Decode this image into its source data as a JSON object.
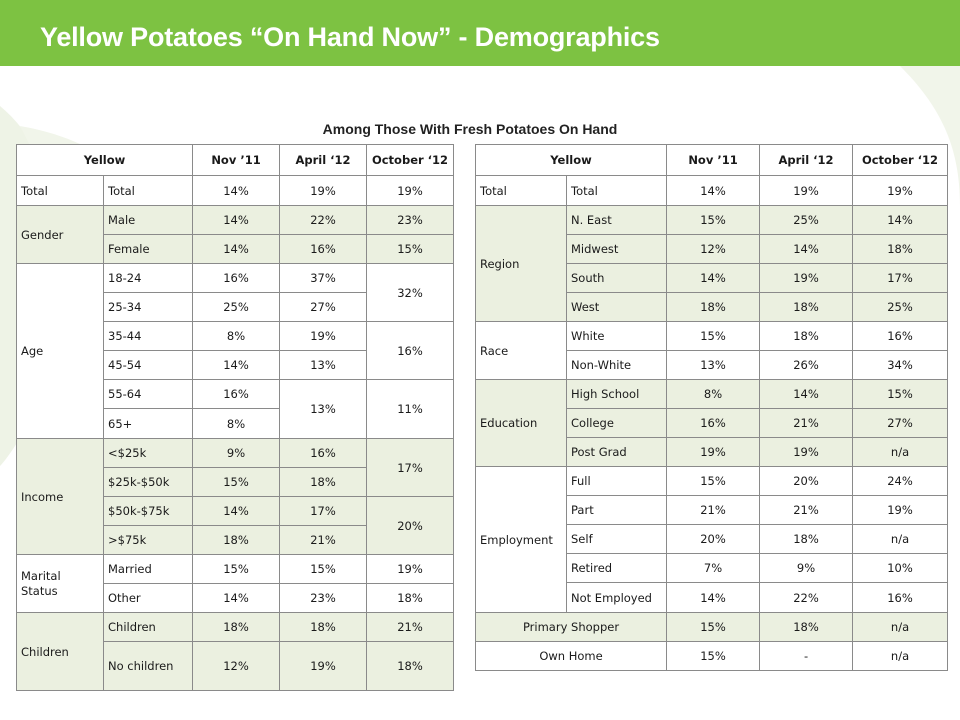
{
  "header": {
    "title": "Yellow Potatoes “On Hand Now” - Demographics"
  },
  "subtitle": "Among Those With Fresh Potatoes On Hand",
  "colors": {
    "title_bar": "#7dc242",
    "band": "#ebf0e0",
    "border": "#8a8a8a"
  },
  "left_table": {
    "headers": [
      "Yellow",
      "Nov ’11",
      "April ‘12",
      "October ‘12"
    ],
    "total": {
      "category": "Total",
      "label": "Total",
      "nov11": "14%",
      "apr12": "19%",
      "oct12": "19%"
    },
    "gender": {
      "category": "Gender",
      "rows": [
        {
          "label": "Male",
          "nov11": "14%",
          "apr12": "22%",
          "oct12": "23%"
        },
        {
          "label": "Female",
          "nov11": "14%",
          "apr12": "16%",
          "oct12": "15%"
        }
      ]
    },
    "age": {
      "category": "Age",
      "rows": [
        {
          "label": "18-24",
          "nov11": "16%",
          "apr12": "37%"
        },
        {
          "label": "25-34",
          "nov11": "25%",
          "apr12": "27%"
        },
        {
          "label": "35-44",
          "nov11": "8%",
          "apr12": "19%"
        },
        {
          "label": "45-54",
          "nov11": "14%",
          "apr12": "13%"
        },
        {
          "label": "55-64",
          "nov11": "16%"
        },
        {
          "label": "65+",
          "nov11": "8%"
        }
      ],
      "apr12_55_65": "13%",
      "oct12_18_34": "32%",
      "oct12_35_54": "16%",
      "oct12_55_plus": "11%"
    },
    "income": {
      "category": "Income",
      "rows": [
        {
          "label": "<$25k",
          "nov11": "9%",
          "apr12": "16%"
        },
        {
          "label": "$25k-$50k",
          "nov11": "15%",
          "apr12": "18%"
        },
        {
          "label": "$50k-$75k",
          "nov11": "14%",
          "apr12": "17%"
        },
        {
          "label": ">$75k",
          "nov11": "18%",
          "apr12": "21%"
        }
      ],
      "oct12_under_50": "17%",
      "oct12_over_50": "20%"
    },
    "marital": {
      "category": "Marital Status",
      "rows": [
        {
          "label": "Married",
          "nov11": "15%",
          "apr12": "15%",
          "oct12": "19%"
        },
        {
          "label": "Other",
          "nov11": "14%",
          "apr12": "23%",
          "oct12": "18%"
        }
      ]
    },
    "children": {
      "category": "Children",
      "rows": [
        {
          "label": "Children",
          "nov11": "18%",
          "apr12": "18%",
          "oct12": "21%"
        },
        {
          "label": "No children",
          "nov11": "12%",
          "apr12": "19%",
          "oct12": "18%"
        }
      ]
    }
  },
  "right_table": {
    "headers": [
      "Yellow",
      "Nov ’11",
      "April ‘12",
      "October ‘12"
    ],
    "total": {
      "category": "Total",
      "label": "Total",
      "nov11": "14%",
      "apr12": "19%",
      "oct12": "19%"
    },
    "region": {
      "category": "Region",
      "rows": [
        {
          "label": "N. East",
          "nov11": "15%",
          "apr12": "25%",
          "oct12": "14%"
        },
        {
          "label": "Midwest",
          "nov11": "12%",
          "apr12": "14%",
          "oct12": "18%"
        },
        {
          "label": "South",
          "nov11": "14%",
          "apr12": "19%",
          "oct12": "17%"
        },
        {
          "label": "West",
          "nov11": "18%",
          "apr12": "18%",
          "oct12": "25%"
        }
      ]
    },
    "race": {
      "category": "Race",
      "rows": [
        {
          "label": "White",
          "nov11": "15%",
          "apr12": "18%",
          "oct12": "16%"
        },
        {
          "label": "Non-White",
          "nov11": "13%",
          "apr12": "26%",
          "oct12": "34%"
        }
      ]
    },
    "education": {
      "category": "Education",
      "rows": [
        {
          "label": "High School",
          "nov11": "8%",
          "apr12": "14%",
          "oct12": "15%"
        },
        {
          "label": "College",
          "nov11": "16%",
          "apr12": "21%",
          "oct12": "27%"
        },
        {
          "label": "Post Grad",
          "nov11": "19%",
          "apr12": "19%",
          "oct12": "n/a"
        }
      ]
    },
    "employment": {
      "category": "Employment",
      "rows": [
        {
          "label": "Full",
          "nov11": "15%",
          "apr12": "20%",
          "oct12": "24%"
        },
        {
          "label": "Part",
          "nov11": "21%",
          "apr12": "21%",
          "oct12": "19%"
        },
        {
          "label": "Self",
          "nov11": "20%",
          "apr12": "18%",
          "oct12": "n/a"
        },
        {
          "label": "Retired",
          "nov11": "7%",
          "apr12": "9%",
          "oct12": "10%"
        },
        {
          "label": "Not Employed",
          "nov11": "14%",
          "apr12": "22%",
          "oct12": "16%"
        }
      ]
    },
    "primary_shopper": {
      "label": "Primary Shopper",
      "nov11": "15%",
      "apr12": "18%",
      "oct12": "n/a"
    },
    "own_home": {
      "label": "Own Home",
      "nov11": "15%",
      "apr12": "-",
      "oct12": "n/a"
    }
  }
}
